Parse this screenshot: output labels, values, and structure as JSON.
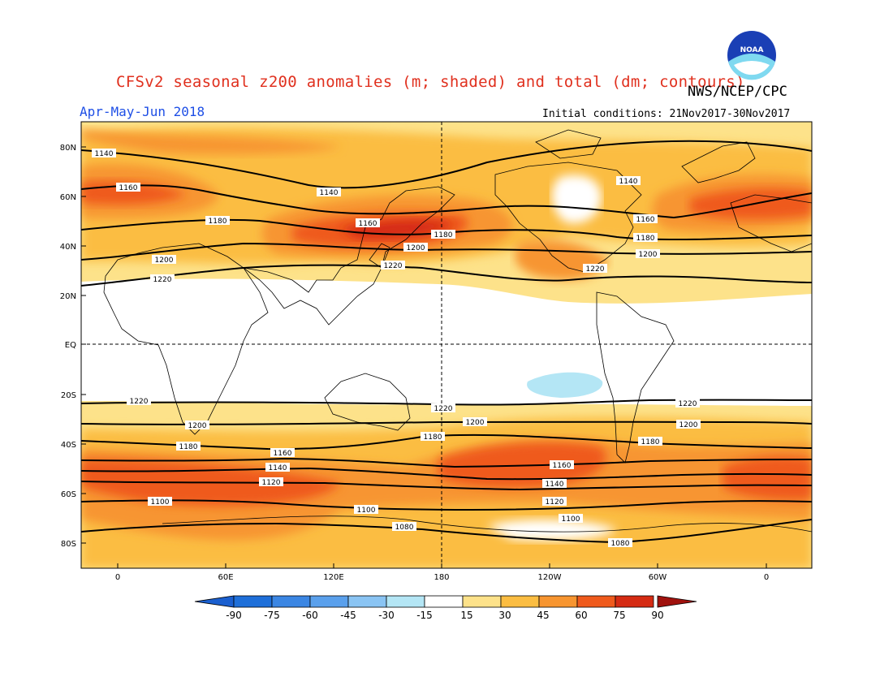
{
  "header": {
    "title": "CFSv2 seasonal z200 anomalies (m; shaded) and total (dm; contours)",
    "agency": "NWS/NCEP/CPC",
    "season": "Apr-May-Jun 2018",
    "initial_conditions": "Initial conditions: 21Nov2017-30Nov2017",
    "logo_icon": "noaa-logo-icon"
  },
  "axes": {
    "lat_labels": [
      "80N",
      "60N",
      "40N",
      "20N",
      "EQ",
      "20S",
      "40S",
      "60S",
      "80S"
    ],
    "lon_labels": [
      "0",
      "60E",
      "120E",
      "180",
      "120W",
      "60W",
      "0"
    ]
  },
  "contours": {
    "units": "dm",
    "levels": [
      "1080",
      "1100",
      "1120",
      "1140",
      "1160",
      "1180",
      "1200",
      "1220"
    ],
    "labels": [
      {
        "id": "n1140a",
        "text": "1140"
      },
      {
        "id": "n1140b",
        "text": "1140"
      },
      {
        "id": "n1140c",
        "text": "1140"
      },
      {
        "id": "n1160a",
        "text": "1160"
      },
      {
        "id": "n1160b",
        "text": "1160"
      },
      {
        "id": "n1160c",
        "text": "1160"
      },
      {
        "id": "n1180a",
        "text": "1180"
      },
      {
        "id": "n1180b",
        "text": "1180"
      },
      {
        "id": "n1180c",
        "text": "1180"
      },
      {
        "id": "n1200a",
        "text": "1200"
      },
      {
        "id": "n1200b",
        "text": "1200"
      },
      {
        "id": "n1200c",
        "text": "1200"
      },
      {
        "id": "n1220a",
        "text": "1220"
      },
      {
        "id": "n1220b",
        "text": "1220"
      },
      {
        "id": "n1220c",
        "text": "1220"
      },
      {
        "id": "s1220a",
        "text": "1220"
      },
      {
        "id": "s1220b",
        "text": "1220"
      },
      {
        "id": "s1220c",
        "text": "1220"
      },
      {
        "id": "s1200a",
        "text": "1200"
      },
      {
        "id": "s1200b",
        "text": "1200"
      },
      {
        "id": "s1200c",
        "text": "1200"
      },
      {
        "id": "s1180a",
        "text": "1180"
      },
      {
        "id": "s1180b",
        "text": "1180"
      },
      {
        "id": "s1180c",
        "text": "1180"
      },
      {
        "id": "s1160a",
        "text": "1160"
      },
      {
        "id": "s1160b",
        "text": "1160"
      },
      {
        "id": "s1140a",
        "text": "1140"
      },
      {
        "id": "s1140b",
        "text": "1140"
      },
      {
        "id": "s1120a",
        "text": "1120"
      },
      {
        "id": "s1120b",
        "text": "1120"
      },
      {
        "id": "s1100a",
        "text": "1100"
      },
      {
        "id": "s1100b",
        "text": "1100"
      },
      {
        "id": "s1100c",
        "text": "1100"
      },
      {
        "id": "s1080a",
        "text": "1080"
      },
      {
        "id": "s1080b",
        "text": "1080"
      }
    ]
  },
  "colorbar": {
    "units": "m",
    "labels": [
      "-90",
      "-75",
      "-60",
      "-45",
      "-30",
      "-15",
      "15",
      "30",
      "45",
      "60",
      "75",
      "90"
    ],
    "colors": [
      "#1e6fd9",
      "#3b86e3",
      "#5aa0ec",
      "#8ac4f3",
      "#b4e6f5",
      "#ffffff",
      "#fde28a",
      "#fbbd42",
      "#f79530",
      "#ef5a1c",
      "#d52b13",
      "#b51a12"
    ],
    "below_min_color": "#1a5fcf",
    "above_max_color": "#a0120e"
  }
}
